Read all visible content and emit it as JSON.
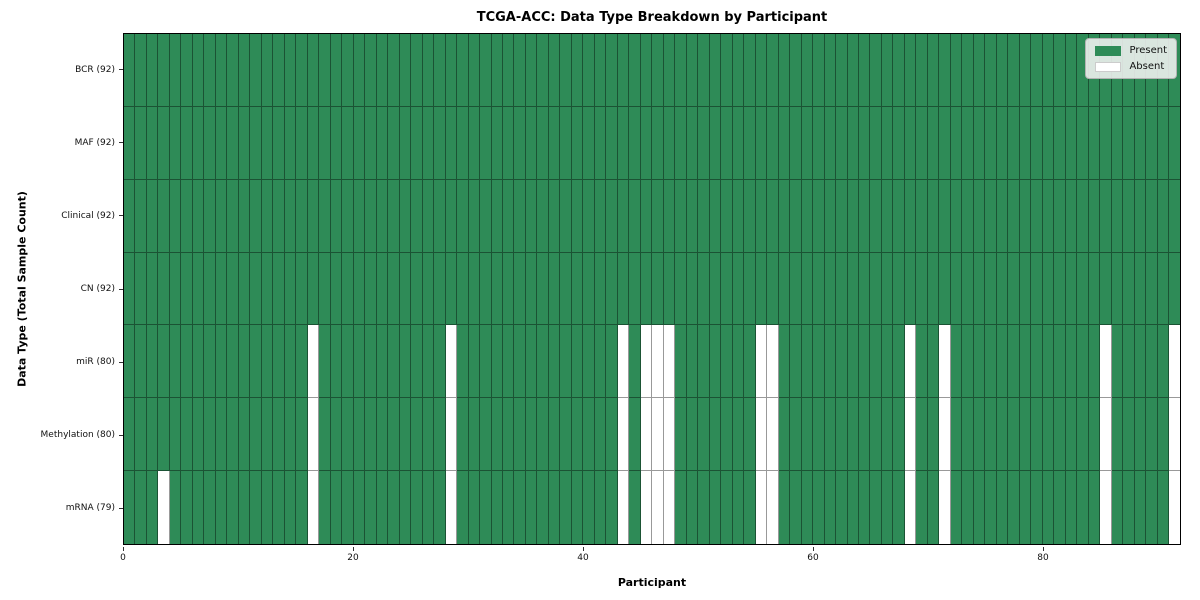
{
  "title": "TCGA-ACC: Data Type Breakdown by Participant",
  "xlabel": "Participant",
  "ylabel": "Data Type (Total Sample Count)",
  "legend": {
    "present_label": "Present",
    "absent_label": "Absent",
    "position": "upper right"
  },
  "colors": {
    "present": "#2e8b57",
    "absent": "#ffffff",
    "grid_line": "rgba(0,0,0,0.40)",
    "frame": "#000000"
  },
  "chart_data": {
    "type": "heatmap",
    "title": "TCGA-ACC: Data Type Breakdown by Participant",
    "xlabel": "Participant",
    "ylabel": "Data Type (Total Sample Count)",
    "n_participants": 92,
    "x_ticks": [
      0,
      20,
      40,
      60,
      80
    ],
    "xlim": [
      0,
      92
    ],
    "grid": true,
    "legend_position": "upper right",
    "cell_values": {
      "present": 1,
      "absent": 0
    },
    "rows": [
      {
        "label": "BCR (92)",
        "data_type": "BCR",
        "present_count": 92,
        "absent_participants": []
      },
      {
        "label": "MAF (92)",
        "data_type": "MAF",
        "present_count": 92,
        "absent_participants": []
      },
      {
        "label": "Clinical (92)",
        "data_type": "Clinical",
        "present_count": 92,
        "absent_participants": []
      },
      {
        "label": "CN (92)",
        "data_type": "CN",
        "present_count": 92,
        "absent_participants": []
      },
      {
        "label": "miR (80)",
        "data_type": "miR",
        "present_count": 80,
        "absent_participants": [
          16,
          28,
          43,
          45,
          46,
          47,
          55,
          56,
          68,
          71,
          85,
          91
        ]
      },
      {
        "label": "Methylation (80)",
        "data_type": "Methylation",
        "present_count": 80,
        "absent_participants": [
          16,
          28,
          43,
          45,
          46,
          47,
          55,
          56,
          68,
          71,
          85,
          91
        ]
      },
      {
        "label": "mRNA (79)",
        "data_type": "mRNA",
        "present_count": 79,
        "absent_participants": [
          3,
          16,
          28,
          43,
          45,
          46,
          47,
          55,
          56,
          68,
          71,
          85,
          91
        ]
      }
    ]
  }
}
